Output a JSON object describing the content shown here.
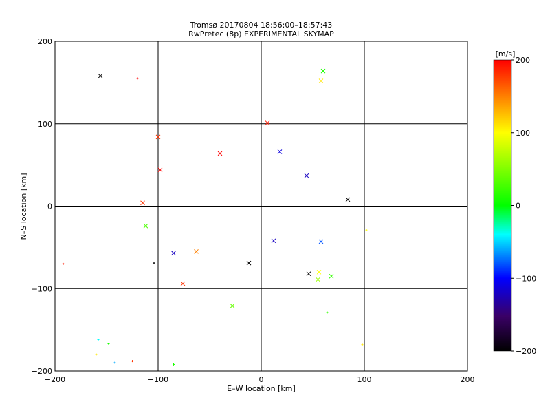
{
  "chart_data": {
    "type": "scatter",
    "title": "Tromsø 20170804 18:56:00–18:57:43",
    "subtitle": "RwPretec (8p) EXPERIMENTAL SKYMAP",
    "xlabel": "E–W location [km]",
    "ylabel": "N–S location [km]",
    "xlim": [
      -200,
      200
    ],
    "ylim": [
      -200,
      200
    ],
    "xticks": [
      "−200",
      "−100",
      "0",
      "100",
      "200"
    ],
    "yticks": [
      "−200",
      "−100",
      "0",
      "100",
      "200"
    ],
    "grid": true,
    "colorbar": {
      "label": "[m/s]",
      "range": [
        -200,
        200
      ],
      "ticks": [
        "−200",
        "−100",
        "0",
        "100",
        "200"
      ],
      "colors": [
        "#000000",
        "#0000ff",
        "#00ffff",
        "#00ff00",
        "#ffff00",
        "#ff0000"
      ]
    },
    "points": [
      {
        "x": -156,
        "y": 158,
        "v": -200,
        "m": "x"
      },
      {
        "x": -120,
        "y": 155,
        "v": 200,
        "m": "+"
      },
      {
        "x": 60,
        "y": 164,
        "v": 10,
        "m": "x"
      },
      {
        "x": 58,
        "y": 152,
        "v": 110,
        "m": "x"
      },
      {
        "x": 6,
        "y": 101,
        "v": 190,
        "m": "x"
      },
      {
        "x": -100,
        "y": 84,
        "v": 180,
        "m": "x"
      },
      {
        "x": 84,
        "y": 8,
        "v": -200,
        "m": "x"
      },
      {
        "x": -115,
        "y": 4,
        "v": 180,
        "m": "x"
      },
      {
        "x": -112,
        "y": -24,
        "v": 30,
        "m": "x"
      },
      {
        "x": -98,
        "y": 44,
        "v": 200,
        "m": "x"
      },
      {
        "x": -63,
        "y": -55,
        "v": 150,
        "m": "x"
      },
      {
        "x": -85,
        "y": -57,
        "v": -120,
        "m": "x"
      },
      {
        "x": -76,
        "y": -94,
        "v": 180,
        "m": "x"
      },
      {
        "x": 46,
        "y": -82,
        "v": -200,
        "m": "x"
      },
      {
        "x": 55,
        "y": -89,
        "v": 60,
        "m": "x"
      },
      {
        "x": 68,
        "y": -85,
        "v": 20,
        "m": "x"
      },
      {
        "x": 56,
        "y": -80,
        "v": 100,
        "m": "x"
      },
      {
        "x": 102,
        "y": -29,
        "v": 100,
        "m": "+"
      },
      {
        "x": -28,
        "y": -121,
        "v": 40,
        "m": "x"
      },
      {
        "x": -12,
        "y": -69,
        "v": -200,
        "m": "x"
      },
      {
        "x": -158,
        "y": -162,
        "v": -40,
        "m": "+"
      },
      {
        "x": -160,
        "y": -180,
        "v": 110,
        "m": "+"
      },
      {
        "x": -148,
        "y": -167,
        "v": 10,
        "m": "+"
      },
      {
        "x": -142,
        "y": -190,
        "v": -60,
        "m": "+"
      },
      {
        "x": -125,
        "y": -188,
        "v": 180,
        "m": "+"
      },
      {
        "x": -85,
        "y": -192,
        "v": 10,
        "m": "+"
      },
      {
        "x": 98,
        "y": -168,
        "v": 110,
        "m": "+"
      },
      {
        "x": 64,
        "y": -129,
        "v": 20,
        "m": "+"
      },
      {
        "x": -192,
        "y": -70,
        "v": 190,
        "m": "+"
      },
      {
        "x": -104,
        "y": -69,
        "v": -200,
        "m": "+"
      },
      {
        "x": 44,
        "y": 37,
        "v": -120,
        "m": "x"
      },
      {
        "x": 58,
        "y": -43,
        "v": -80,
        "m": "x"
      },
      {
        "x": 12,
        "y": -42,
        "v": -120,
        "m": "x"
      },
      {
        "x": -40,
        "y": 64,
        "v": 200,
        "m": "x"
      },
      {
        "x": 18,
        "y": 66,
        "v": -110,
        "m": "x"
      }
    ]
  }
}
